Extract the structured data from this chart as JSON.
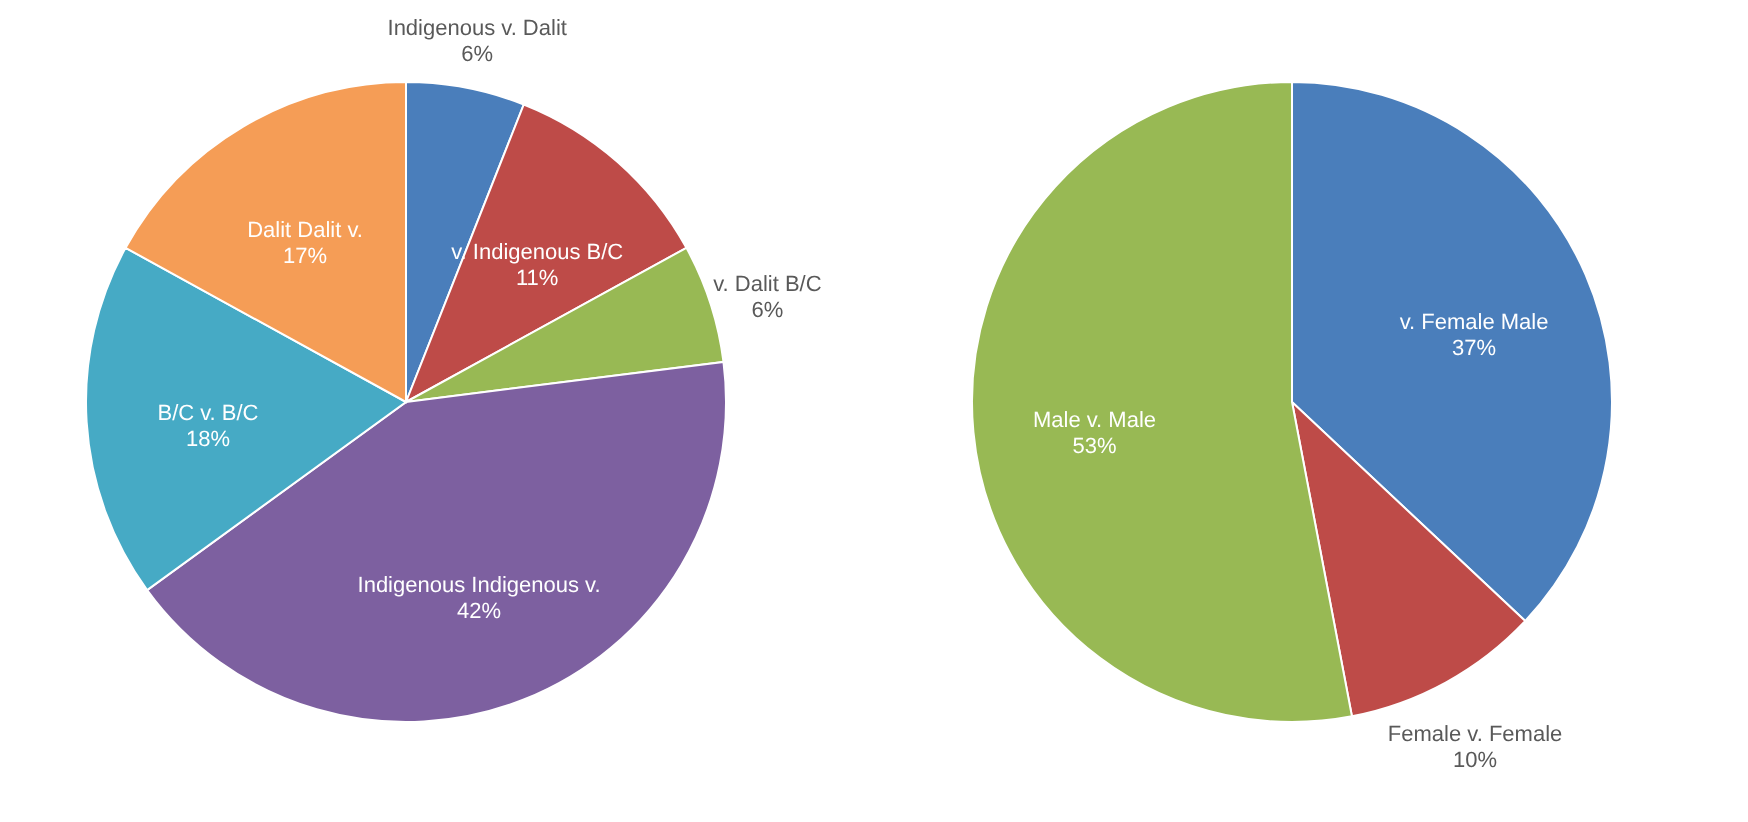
{
  "chart_data": [
    {
      "type": "pie",
      "categories": [
        "Indigenous v. Dalit",
        "v. Indigenous B/C",
        "v. Dalit B/C",
        "Indigenous Indigenous v.",
        "B/C v. B/C",
        "Dalit Dalit v."
      ],
      "values": [
        6,
        11,
        6,
        42,
        18,
        17
      ],
      "value_labels": [
        "6%",
        "11%",
        "6%",
        "42%",
        "18%",
        "17%"
      ],
      "colors": [
        "#4a7ebb",
        "#be4b48",
        "#98b954",
        "#7d60a0",
        "#46aac5",
        "#f59d56"
      ]
    },
    {
      "type": "pie",
      "categories": [
        "v. Female Male",
        "Female v. Female",
        "Male v. Male"
      ],
      "values": [
        37,
        10,
        53
      ],
      "value_labels": [
        "37%",
        "10%",
        "53%"
      ],
      "colors": [
        "#4a7ebb",
        "#be4b48",
        "#98b954"
      ]
    }
  ]
}
